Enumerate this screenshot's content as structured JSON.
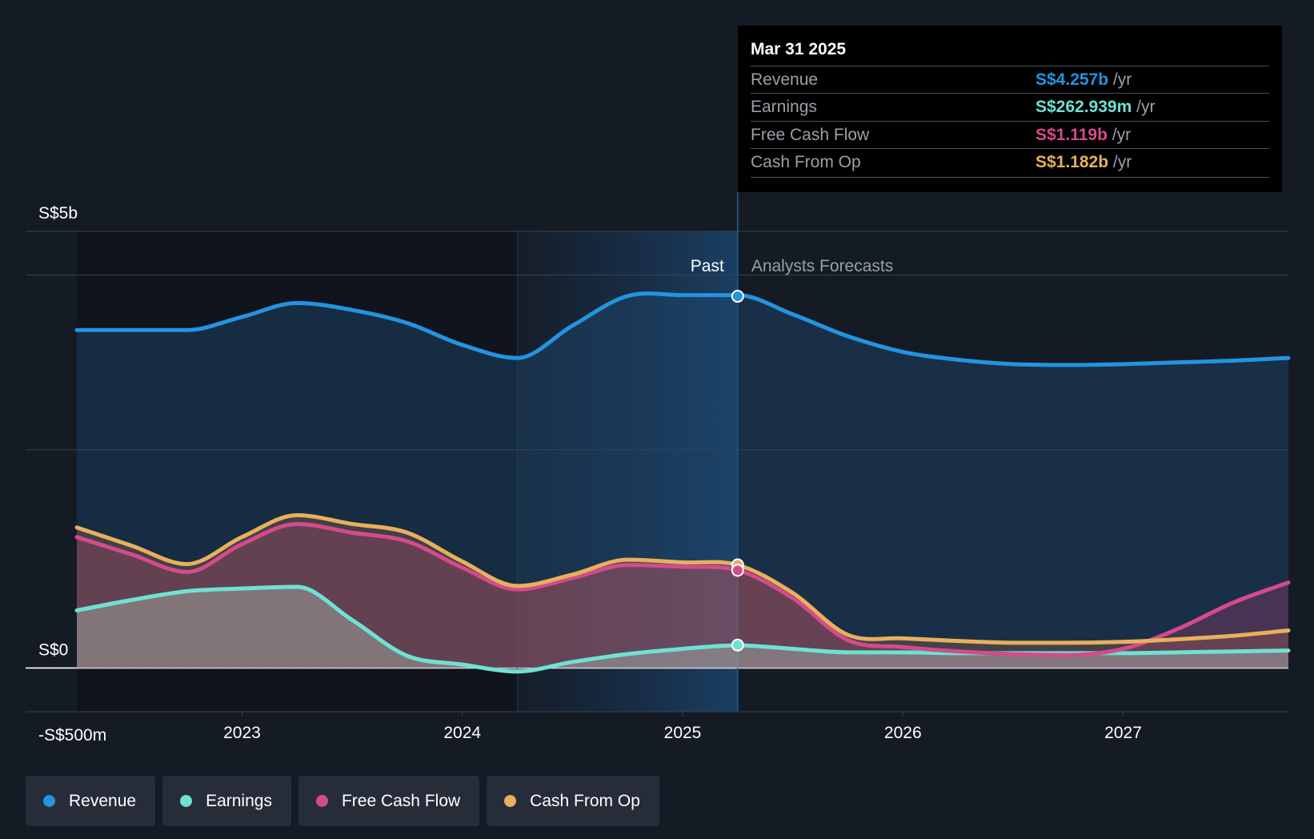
{
  "colors": {
    "background": "#151b25",
    "revenue": "#2394df",
    "earnings": "#6ee2d2",
    "free_cash_flow": "#d44b8c",
    "cash_from_op": "#e8b05c"
  },
  "tooltip": {
    "title": "Mar 31 2025",
    "rows": [
      {
        "label": "Revenue",
        "value": "S$4.257b",
        "unit": "/yr",
        "color": "#2394df"
      },
      {
        "label": "Earnings",
        "value": "S$262.939m",
        "unit": "/yr",
        "color": "#6ee2d2"
      },
      {
        "label": "Free Cash Flow",
        "value": "S$1.119b",
        "unit": "/yr",
        "color": "#d44b8c"
      },
      {
        "label": "Cash From Op",
        "value": "S$1.182b",
        "unit": "/yr",
        "color": "#e8b05c"
      }
    ]
  },
  "chart_data": {
    "type": "line",
    "y_unit": "S$ billions",
    "ylim": [
      -0.5,
      5.0
    ],
    "y_tick_labels": [
      {
        "value": 5.0,
        "label": "S$5b"
      },
      {
        "value": 0.0,
        "label": "S$0"
      },
      {
        "value": -0.5,
        "label": "-S$500m"
      }
    ],
    "gridlines": [
      5.0,
      4.5,
      2.5,
      0.0,
      -0.5
    ],
    "xlim": [
      2022.25,
      2027.75
    ],
    "x_ticks": [
      {
        "value": 2023,
        "label": "2023"
      },
      {
        "value": 2024,
        "label": "2024"
      },
      {
        "value": 2025,
        "label": "2025"
      },
      {
        "value": 2026,
        "label": "2026"
      },
      {
        "value": 2027,
        "label": "2027"
      }
    ],
    "past_label": "Past",
    "forecast_label": "Analysts Forecasts",
    "past_end_x": 2025.25,
    "highlight_start_x": 2024.25,
    "series": [
      {
        "name": "Revenue",
        "key": "revenue",
        "color": "#2394df",
        "x": [
          2022.25,
          2022.5,
          2022.75,
          2023.0,
          2023.25,
          2023.5,
          2023.75,
          2024.0,
          2024.25,
          2024.5,
          2024.75,
          2025.0,
          2025.25,
          2025.5,
          2025.75,
          2026.0,
          2026.25,
          2026.5,
          2026.75,
          2027.0,
          2027.25,
          2027.5,
          2027.75
        ],
        "y": [
          3.87,
          3.87,
          3.87,
          4.02,
          4.18,
          4.1,
          3.95,
          3.7,
          3.55,
          3.92,
          4.26,
          4.27,
          4.27,
          4.05,
          3.8,
          3.62,
          3.53,
          3.48,
          3.47,
          3.48,
          3.5,
          3.52,
          3.55
        ]
      },
      {
        "name": "Earnings",
        "key": "earnings",
        "color": "#6ee2d2",
        "x": [
          2022.25,
          2022.5,
          2022.75,
          2023.0,
          2023.25,
          2023.5,
          2023.75,
          2024.0,
          2024.25,
          2024.5,
          2024.75,
          2025.0,
          2025.25,
          2025.5,
          2025.75,
          2026.0,
          2026.25,
          2026.5,
          2026.75,
          2027.0,
          2027.25,
          2027.5,
          2027.75
        ],
        "y": [
          0.66,
          0.78,
          0.88,
          0.91,
          0.93,
          0.55,
          0.14,
          0.04,
          -0.04,
          0.07,
          0.16,
          0.22,
          0.26,
          0.22,
          0.18,
          0.18,
          0.17,
          0.17,
          0.17,
          0.17,
          0.18,
          0.19,
          0.2
        ]
      },
      {
        "name": "Free Cash Flow",
        "key": "free_cash_flow",
        "color": "#d44b8c",
        "x": [
          2022.25,
          2022.5,
          2022.75,
          2023.0,
          2023.25,
          2023.5,
          2023.75,
          2024.0,
          2024.25,
          2024.5,
          2024.75,
          2025.0,
          2025.25,
          2025.5,
          2025.75,
          2026.0,
          2026.25,
          2026.5,
          2026.75,
          2027.0,
          2027.25,
          2027.5,
          2027.75
        ],
        "y": [
          1.5,
          1.3,
          1.1,
          1.42,
          1.65,
          1.55,
          1.45,
          1.15,
          0.9,
          1.03,
          1.18,
          1.16,
          1.12,
          0.8,
          0.32,
          0.24,
          0.19,
          0.16,
          0.15,
          0.22,
          0.45,
          0.75,
          0.98
        ]
      },
      {
        "name": "Cash From Op",
        "key": "cash_from_op",
        "color": "#e8b05c",
        "x": [
          2022.25,
          2022.5,
          2022.75,
          2023.0,
          2023.25,
          2023.5,
          2023.75,
          2024.0,
          2024.25,
          2024.5,
          2024.75,
          2025.0,
          2025.25,
          2025.5,
          2025.75,
          2026.0,
          2026.25,
          2026.5,
          2026.75,
          2027.0,
          2027.25,
          2027.5,
          2027.75
        ],
        "y": [
          1.61,
          1.4,
          1.19,
          1.5,
          1.75,
          1.65,
          1.55,
          1.22,
          0.94,
          1.07,
          1.24,
          1.21,
          1.18,
          0.86,
          0.38,
          0.34,
          0.31,
          0.29,
          0.29,
          0.3,
          0.33,
          0.37,
          0.43
        ]
      }
    ],
    "markers": [
      {
        "series": "revenue",
        "x": 2025.25,
        "y": 4.257
      },
      {
        "series": "cash_from_op",
        "x": 2025.25,
        "y": 1.182
      },
      {
        "series": "free_cash_flow",
        "x": 2025.25,
        "y": 1.119
      },
      {
        "series": "earnings",
        "x": 2025.25,
        "y": 0.263
      }
    ]
  },
  "legend": {
    "items": [
      {
        "label": "Revenue",
        "color": "#2394df"
      },
      {
        "label": "Earnings",
        "color": "#6ee2d2"
      },
      {
        "label": "Free Cash Flow",
        "color": "#d44b8c"
      },
      {
        "label": "Cash From Op",
        "color": "#e8b05c"
      }
    ]
  }
}
